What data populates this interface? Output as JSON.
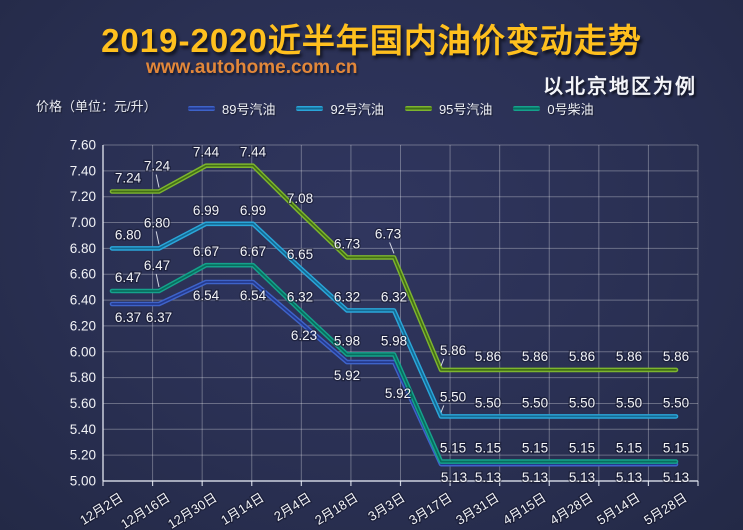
{
  "header": {
    "title": "2019-2020近半年国内油价变动走势",
    "url": "www.autohome.com.cn",
    "subtitle": "以北京地区为例"
  },
  "colors": {
    "background": "#2a3053",
    "title_yellow": "#ffc01e",
    "url_orange": "#e2873a",
    "text_white": "#f2f3f7",
    "grid": "rgba(255,255,255,0.30)",
    "axis": "rgba(235,238,248,0.85)"
  },
  "chart_data": {
    "type": "line",
    "title": "2019-2020近半年国内油价变动走势",
    "subtitle": "以北京地区为例",
    "ylabel": "价格（单位：元/升）",
    "xlabel": "",
    "ylim": [
      5.0,
      7.6
    ],
    "ytick_step": 0.2,
    "grid": true,
    "legend_position": "top",
    "categories": [
      "12月2日",
      "12月16日",
      "12月30日",
      "1月14日",
      "2月4日",
      "2月18日",
      "3月3日",
      "3月17日",
      "3月31日",
      "4月15日",
      "4月28日",
      "5月14日",
      "5月28日"
    ],
    "series": [
      {
        "name": "89号汽油",
        "color": "#3e63c9",
        "color_dark": "#24398c",
        "values": [
          6.37,
          6.37,
          6.54,
          6.54,
          6.23,
          5.92,
          5.92,
          5.13,
          5.13,
          5.13,
          5.13,
          5.13,
          5.13
        ]
      },
      {
        "name": "92号汽油",
        "color": "#2aa6da",
        "color_dark": "#156a92",
        "values": [
          6.8,
          6.8,
          6.99,
          6.99,
          6.65,
          6.32,
          6.32,
          5.5,
          5.5,
          5.5,
          5.5,
          5.5,
          5.5
        ]
      },
      {
        "name": "95号汽油",
        "color": "#7db52e",
        "color_dark": "#426f16",
        "values": [
          7.24,
          7.24,
          7.44,
          7.44,
          7.08,
          6.73,
          6.73,
          5.86,
          5.86,
          5.86,
          5.86,
          5.86,
          5.86
        ]
      },
      {
        "name": "0号柴油",
        "color": "#15a28c",
        "color_dark": "#086e5e",
        "values": [
          6.47,
          6.47,
          6.67,
          6.67,
          6.32,
          5.98,
          5.98,
          5.15,
          5.15,
          5.15,
          5.15,
          5.15,
          5.15
        ]
      }
    ]
  }
}
